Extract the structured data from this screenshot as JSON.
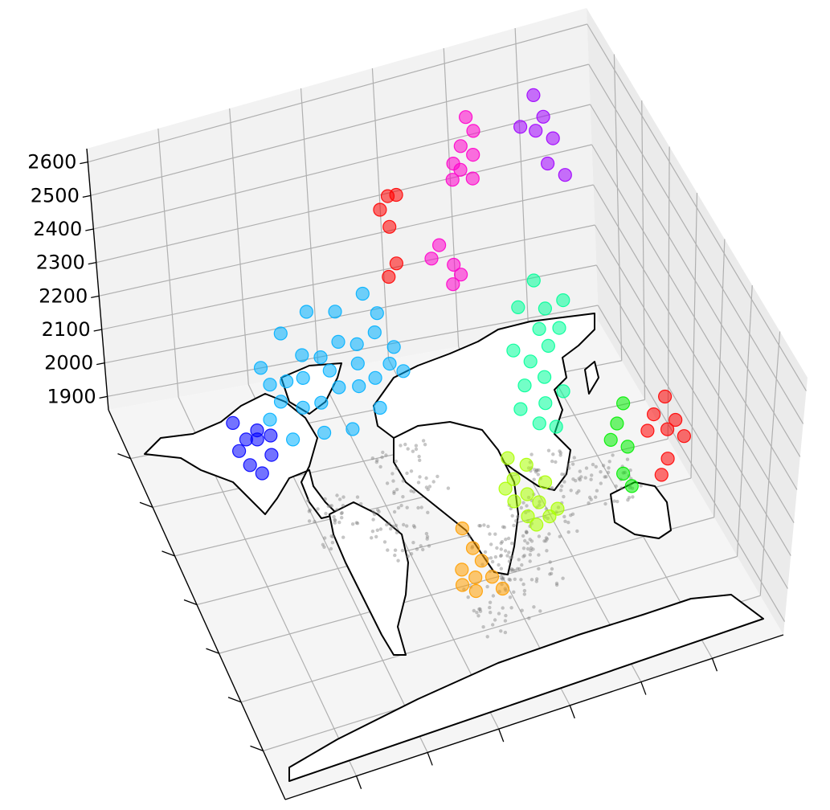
{
  "chart_data": {
    "type": "scatter",
    "projection": "3d",
    "title": "",
    "xlabel": "",
    "ylabel": "",
    "zlabel": "",
    "z_ticks": [
      "1900",
      "2000",
      "2100",
      "2200",
      "2300",
      "2400",
      "2500",
      "2600"
    ],
    "z_range": [
      1860,
      2640
    ],
    "grid": true,
    "base_layer": "world coastline map",
    "background_points": {
      "color": "#808080",
      "description": "grey points at ground level across continents"
    },
    "series": [
      {
        "color": "#0000ff",
        "points": [
          [
            0.155,
            0.335,
            2070
          ],
          [
            0.17,
            0.35,
            2040
          ],
          [
            0.2,
            0.31,
            2060
          ],
          [
            0.22,
            0.33,
            2030
          ],
          [
            0.16,
            0.29,
            2100
          ],
          [
            0.19,
            0.36,
            2020
          ],
          [
            0.21,
            0.28,
            2050
          ],
          [
            0.175,
            0.32,
            2080
          ],
          [
            0.23,
            0.3,
            2050
          ]
        ]
      },
      {
        "color": "#00b0ff",
        "points": [
          [
            0.25,
            0.2,
            2130
          ],
          [
            0.29,
            0.23,
            2110
          ],
          [
            0.33,
            0.21,
            2150
          ],
          [
            0.37,
            0.2,
            2120
          ],
          [
            0.41,
            0.19,
            2140
          ],
          [
            0.45,
            0.18,
            2110
          ],
          [
            0.49,
            0.17,
            2120
          ],
          [
            0.52,
            0.19,
            2090
          ],
          [
            0.27,
            0.25,
            2080
          ],
          [
            0.31,
            0.26,
            2060
          ],
          [
            0.35,
            0.25,
            2050
          ],
          [
            0.39,
            0.24,
            2070
          ],
          [
            0.43,
            0.24,
            2060
          ],
          [
            0.47,
            0.22,
            2050
          ],
          [
            0.5,
            0.22,
            2080
          ],
          [
            0.3,
            0.18,
            2190
          ],
          [
            0.36,
            0.16,
            2210
          ],
          [
            0.42,
            0.15,
            2180
          ],
          [
            0.48,
            0.14,
            2200
          ],
          [
            0.28,
            0.28,
            2000
          ],
          [
            0.34,
            0.29,
            2010
          ],
          [
            0.4,
            0.28,
            1990
          ],
          [
            0.46,
            0.27,
            2020
          ],
          [
            0.26,
            0.22,
            2100
          ],
          [
            0.38,
            0.22,
            2100
          ],
          [
            0.44,
            0.21,
            2090
          ],
          [
            0.32,
            0.24,
            2120
          ],
          [
            0.5,
            0.16,
            2160
          ],
          [
            0.24,
            0.27,
            2060
          ],
          [
            0.53,
            0.21,
            2040
          ]
        ]
      },
      {
        "color": "#ff0000",
        "points": [
          [
            0.54,
            0.09,
            2360
          ],
          [
            0.56,
            0.08,
            2380
          ],
          [
            0.55,
            0.11,
            2330
          ],
          [
            0.57,
            0.1,
            2400
          ],
          [
            0.53,
            0.15,
            2240
          ],
          [
            0.55,
            0.14,
            2260
          ]
        ]
      },
      {
        "color": "#ff00cc",
        "points": [
          [
            0.62,
            0.14,
            2250
          ],
          [
            0.64,
            0.13,
            2270
          ],
          [
            0.66,
            0.15,
            2230
          ],
          [
            0.65,
            0.17,
            2200
          ],
          [
            0.67,
            0.16,
            2210
          ],
          [
            0.7,
            0.06,
            2400
          ],
          [
            0.72,
            0.05,
            2430
          ],
          [
            0.74,
            0.06,
            2410
          ],
          [
            0.73,
            0.08,
            2370
          ],
          [
            0.71,
            0.07,
            2390
          ],
          [
            0.75,
            0.04,
            2450
          ],
          [
            0.69,
            0.08,
            2380
          ],
          [
            0.74,
            0.03,
            2480
          ]
        ]
      },
      {
        "color": "#a000ff",
        "points": [
          [
            0.88,
            0.02,
            2480
          ],
          [
            0.89,
            0.04,
            2440
          ],
          [
            0.9,
            0.06,
            2400
          ],
          [
            0.88,
            0.08,
            2360
          ],
          [
            0.87,
            0.05,
            2420
          ],
          [
            0.84,
            0.05,
            2440
          ],
          [
            0.91,
            0.09,
            2330
          ]
        ]
      },
      {
        "color": "#00ff99",
        "points": [
          [
            0.74,
            0.3,
            2020
          ],
          [
            0.76,
            0.28,
            2060
          ],
          [
            0.78,
            0.3,
            2030
          ],
          [
            0.8,
            0.27,
            2080
          ],
          [
            0.77,
            0.33,
            1990
          ],
          [
            0.79,
            0.25,
            2110
          ],
          [
            0.81,
            0.23,
            2140
          ],
          [
            0.83,
            0.25,
            2100
          ],
          [
            0.75,
            0.35,
            1960
          ],
          [
            0.78,
            0.36,
            1950
          ],
          [
            0.81,
            0.32,
            2000
          ],
          [
            0.73,
            0.27,
            2090
          ],
          [
            0.85,
            0.22,
            2140
          ],
          [
            0.76,
            0.22,
            2150
          ],
          [
            0.72,
            0.33,
            1990
          ],
          [
            0.8,
            0.2,
            2190
          ]
        ]
      },
      {
        "color": "#00ee00",
        "points": [
          [
            0.88,
            0.42,
            1980
          ],
          [
            0.89,
            0.45,
            1940
          ],
          [
            0.87,
            0.48,
            1900
          ],
          [
            0.9,
            0.4,
            2010
          ],
          [
            0.88,
            0.5,
            1880
          ],
          [
            0.86,
            0.44,
            1960
          ]
        ]
      },
      {
        "color": "#ff0000",
        "points": [
          [
            0.95,
            0.43,
            1990
          ],
          [
            0.97,
            0.45,
            1960
          ],
          [
            0.99,
            0.44,
            1970
          ],
          [
            1.0,
            0.46,
            1940
          ],
          [
            0.96,
            0.48,
            1910
          ],
          [
            0.93,
            0.45,
            1970
          ],
          [
            0.98,
            0.41,
            2010
          ],
          [
            0.94,
            0.5,
            1890
          ]
        ]
      },
      {
        "color": "#aaff00",
        "points": [
          [
            0.66,
            0.45,
            1930
          ],
          [
            0.68,
            0.47,
            1900
          ],
          [
            0.7,
            0.48,
            1880
          ],
          [
            0.67,
            0.5,
            1870
          ],
          [
            0.72,
            0.46,
            1910
          ],
          [
            0.65,
            0.48,
            1900
          ],
          [
            0.69,
            0.44,
            1950
          ],
          [
            0.71,
            0.51,
            1865
          ],
          [
            0.64,
            0.46,
            1920
          ],
          [
            0.73,
            0.5,
            1870
          ],
          [
            0.68,
            0.52,
            1862
          ],
          [
            0.66,
            0.42,
            1960
          ]
        ]
      },
      {
        "color": "#ff9f00",
        "points": [
          [
            0.5,
            0.6,
            1880
          ],
          [
            0.52,
            0.62,
            1870
          ],
          [
            0.54,
            0.6,
            1890
          ],
          [
            0.51,
            0.65,
            1865
          ],
          [
            0.55,
            0.63,
            1870
          ],
          [
            0.53,
            0.58,
            1910
          ],
          [
            0.49,
            0.63,
            1870
          ],
          [
            0.56,
            0.66,
            1862
          ],
          [
            0.52,
            0.55,
            1940
          ]
        ]
      }
    ]
  }
}
